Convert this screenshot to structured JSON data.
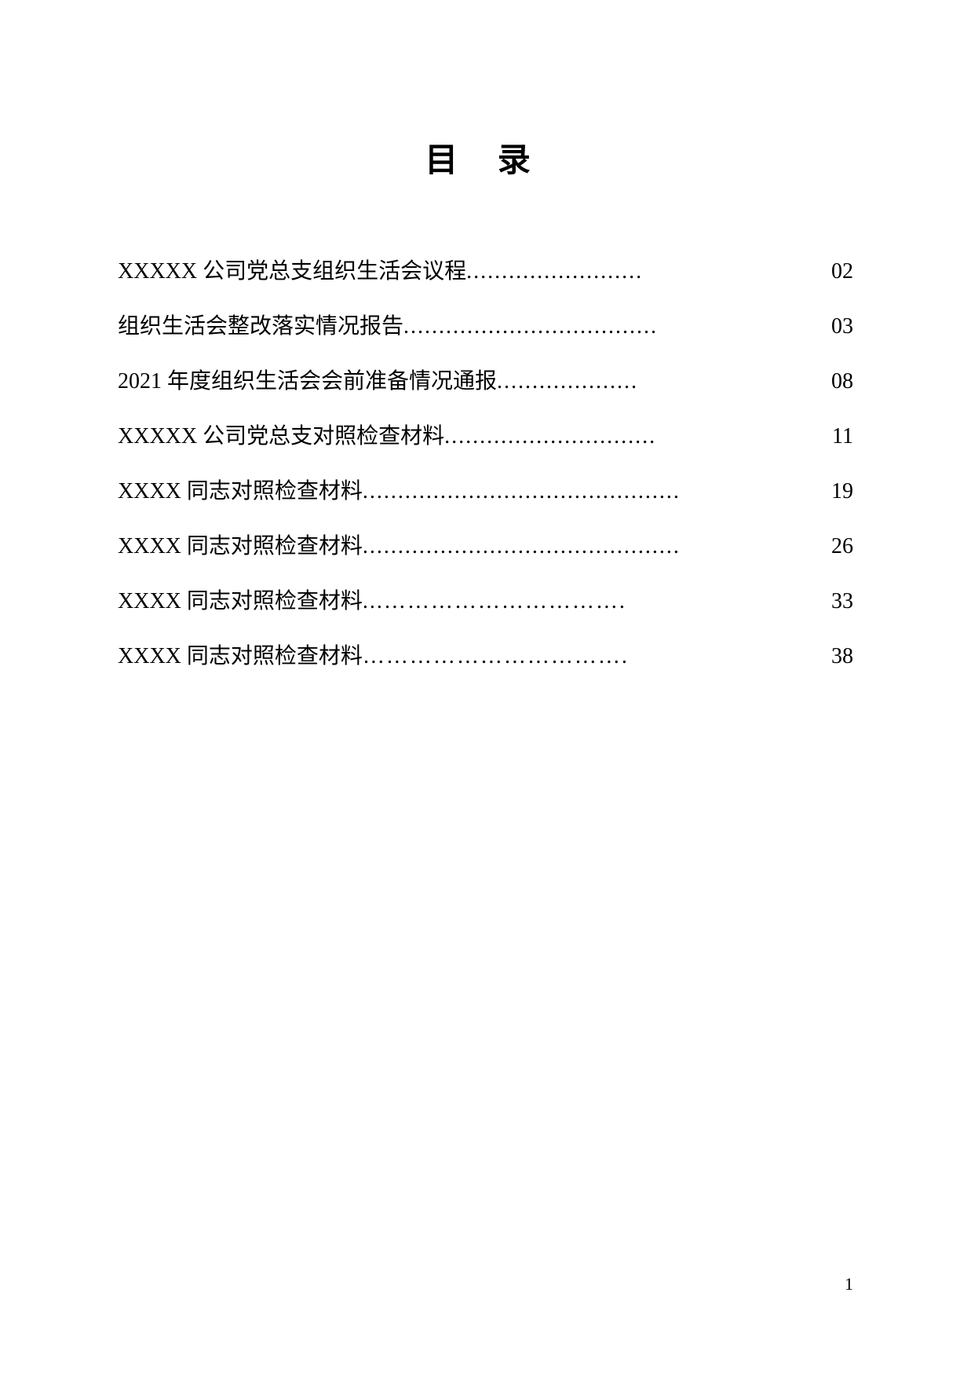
{
  "title": "目  录",
  "toc": [
    {
      "text": "XXXXX 公司党总支组织生活会议程",
      "dots": ".........................",
      "page": "02"
    },
    {
      "text": "组织生活会整改落实情况报告",
      "dots": "....................................",
      "page": "03"
    },
    {
      "text": "2021 年度组织生活会会前准备情况通报",
      "dots": "....................",
      "page": "08"
    },
    {
      "text": "XXXXX 公司党总支对照检查材料",
      "dots": "..............................",
      "page": "11"
    },
    {
      "text": "XXXX 同志对照检查材料",
      "dots": ".............................................",
      "page": "19"
    },
    {
      "text": "XXXX 同志对照检查材料",
      "dots": ".............................................",
      "page": "26"
    },
    {
      "text": "XXXX 同志对照检查材料",
      "dots": "...………………………….",
      "page": "33"
    },
    {
      "text": "XXXX 同志对照检查材料",
      "dots": "…………………………….",
      "page": "38"
    }
  ],
  "page_number": "1",
  "colors": {
    "text": "#000000",
    "background": "#ffffff"
  },
  "typography": {
    "title_fontsize": 42,
    "body_fontsize": 28,
    "pagenum_fontsize": 22,
    "font_family": "SimSun"
  }
}
